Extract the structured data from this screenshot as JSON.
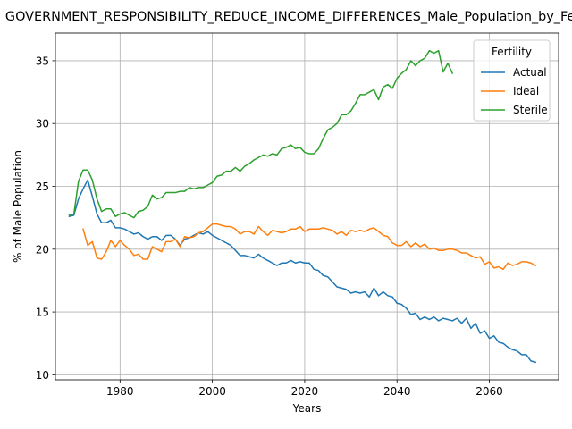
{
  "chart_data": {
    "type": "line",
    "title": "GOVERNMENT_RESPONSIBILITY_REDUCE_INCOME_DIFFERENCES_Male_Population_by_Fertility",
    "xlabel": "Years",
    "ylabel": "% of Male Population",
    "xlim": [
      1966,
      2075
    ],
    "ylim": [
      9.6,
      37.2
    ],
    "xticks": [
      1980,
      2000,
      2020,
      2040,
      2060
    ],
    "yticks": [
      10,
      15,
      20,
      25,
      30,
      35
    ],
    "grid": true,
    "legend": {
      "title": "Fertility",
      "position": "top-right"
    },
    "series": [
      {
        "name": "Actual",
        "color": "#1f77b4",
        "x": [
          1969,
          1970,
          1971,
          1972,
          1973,
          1974,
          1975,
          1976,
          1977,
          1978,
          1979,
          1980,
          1981,
          1982,
          1983,
          1984,
          1985,
          1986,
          1987,
          1988,
          1989,
          1990,
          1991,
          1992,
          1993,
          1994,
          1995,
          1996,
          1997,
          1998,
          1999,
          2000,
          2001,
          2002,
          2003,
          2004,
          2005,
          2006,
          2007,
          2008,
          2009,
          2010,
          2011,
          2012,
          2013,
          2014,
          2015,
          2016,
          2017,
          2018,
          2019,
          2020,
          2021,
          2022,
          2023,
          2024,
          2025,
          2026,
          2027,
          2028,
          2029,
          2030,
          2031,
          2032,
          2033,
          2034,
          2035,
          2036,
          2037,
          2038,
          2039,
          2040,
          2041,
          2042,
          2043,
          2044,
          2045,
          2046,
          2047,
          2048,
          2049,
          2050,
          2051,
          2052,
          2053,
          2054,
          2055,
          2056,
          2057,
          2058,
          2059,
          2060,
          2061,
          2062,
          2063,
          2064,
          2065,
          2066,
          2067,
          2068,
          2069,
          2070
        ],
        "y": [
          22.6,
          22.7,
          24.0,
          24.8,
          25.5,
          24.2,
          22.8,
          22.1,
          22.1,
          22.3,
          21.7,
          21.7,
          21.6,
          21.4,
          21.2,
          21.3,
          21.0,
          20.8,
          21.0,
          21.0,
          20.7,
          21.1,
          21.1,
          20.8,
          20.3,
          20.8,
          20.9,
          21.1,
          21.3,
          21.2,
          21.4,
          21.1,
          20.9,
          20.7,
          20.5,
          20.3,
          19.9,
          19.5,
          19.5,
          19.4,
          19.3,
          19.6,
          19.3,
          19.1,
          18.9,
          18.7,
          18.9,
          18.9,
          19.1,
          18.9,
          19.0,
          18.9,
          18.9,
          18.4,
          18.3,
          17.9,
          17.8,
          17.4,
          17.0,
          16.9,
          16.8,
          16.5,
          16.6,
          16.5,
          16.6,
          16.2,
          16.9,
          16.3,
          16.6,
          16.3,
          16.2,
          15.7,
          15.6,
          15.3,
          14.8,
          14.9,
          14.4,
          14.6,
          14.4,
          14.6,
          14.3,
          14.5,
          14.4,
          14.3,
          14.5,
          14.1,
          14.5,
          13.7,
          14.1,
          13.3,
          13.5,
          12.9,
          13.1,
          12.6,
          12.5,
          12.2,
          12.0,
          11.9,
          11.6,
          11.6,
          11.1,
          11.0
        ]
      },
      {
        "name": "Ideal",
        "color": "#ff7f0e",
        "x": [
          1972,
          1973,
          1974,
          1975,
          1976,
          1977,
          1978,
          1979,
          1980,
          1981,
          1982,
          1983,
          1984,
          1985,
          1986,
          1987,
          1988,
          1989,
          1990,
          1991,
          1992,
          1993,
          1994,
          1995,
          1996,
          1997,
          1998,
          1999,
          2000,
          2001,
          2002,
          2003,
          2004,
          2005,
          2006,
          2007,
          2008,
          2009,
          2010,
          2011,
          2012,
          2013,
          2014,
          2015,
          2016,
          2017,
          2018,
          2019,
          2020,
          2021,
          2022,
          2023,
          2024,
          2025,
          2026,
          2027,
          2028,
          2029,
          2030,
          2031,
          2032,
          2033,
          2034,
          2035,
          2036,
          2037,
          2038,
          2039,
          2040,
          2041,
          2042,
          2043,
          2044,
          2045,
          2046,
          2047,
          2048,
          2049,
          2050,
          2051,
          2052,
          2053,
          2054,
          2055,
          2056,
          2057,
          2058,
          2059,
          2060,
          2061,
          2062,
          2063,
          2064,
          2065,
          2066,
          2067,
          2068,
          2069,
          2070
        ],
        "y": [
          21.6,
          20.3,
          20.6,
          19.3,
          19.2,
          19.8,
          20.7,
          20.2,
          20.7,
          20.3,
          20.0,
          19.5,
          19.6,
          19.2,
          19.2,
          20.2,
          20.0,
          19.8,
          20.6,
          20.6,
          20.8,
          20.2,
          21.0,
          20.9,
          21.0,
          21.3,
          21.4,
          21.7,
          22.0,
          22.0,
          21.9,
          21.8,
          21.8,
          21.6,
          21.2,
          21.4,
          21.4,
          21.2,
          21.8,
          21.4,
          21.1,
          21.5,
          21.4,
          21.3,
          21.4,
          21.6,
          21.6,
          21.8,
          21.4,
          21.6,
          21.6,
          21.6,
          21.7,
          21.6,
          21.5,
          21.2,
          21.4,
          21.1,
          21.5,
          21.4,
          21.5,
          21.4,
          21.6,
          21.7,
          21.4,
          21.1,
          21.0,
          20.5,
          20.3,
          20.3,
          20.6,
          20.2,
          20.5,
          20.2,
          20.4,
          20.0,
          20.1,
          19.9,
          19.9,
          20.0,
          20.0,
          19.9,
          19.7,
          19.7,
          19.5,
          19.3,
          19.4,
          18.8,
          19.0,
          18.5,
          18.6,
          18.4,
          18.9,
          18.7,
          18.8,
          19.0,
          19.0,
          18.9,
          18.7
        ]
      },
      {
        "name": "Sterile",
        "color": "#2ca02c",
        "x": [
          1969,
          1970,
          1971,
          1972,
          1973,
          1974,
          1975,
          1976,
          1977,
          1978,
          1979,
          1980,
          1981,
          1982,
          1983,
          1984,
          1985,
          1986,
          1987,
          1988,
          1989,
          1990,
          1991,
          1992,
          1993,
          1994,
          1995,
          1996,
          1997,
          1998,
          1999,
          2000,
          2001,
          2002,
          2003,
          2004,
          2005,
          2006,
          2007,
          2008,
          2009,
          2010,
          2011,
          2012,
          2013,
          2014,
          2015,
          2016,
          2017,
          2018,
          2019,
          2020,
          2021,
          2022,
          2023,
          2024,
          2025,
          2026,
          2027,
          2028,
          2029,
          2030,
          2031,
          2032,
          2033,
          2034,
          2035,
          2036,
          2037,
          2038,
          2039,
          2040,
          2041,
          2042,
          2043,
          2044,
          2045,
          2046,
          2047,
          2048,
          2049,
          2050,
          2051,
          2052
        ],
        "y": [
          22.7,
          22.8,
          25.4,
          26.3,
          26.3,
          25.5,
          24.0,
          23.0,
          23.2,
          23.2,
          22.6,
          22.8,
          22.9,
          22.7,
          22.5,
          23.0,
          23.1,
          23.4,
          24.3,
          24.0,
          24.1,
          24.5,
          24.5,
          24.5,
          24.6,
          24.6,
          24.9,
          24.8,
          24.9,
          24.9,
          25.1,
          25.3,
          25.8,
          25.9,
          26.2,
          26.2,
          26.5,
          26.2,
          26.6,
          26.8,
          27.1,
          27.3,
          27.5,
          27.4,
          27.6,
          27.5,
          28.0,
          28.1,
          28.3,
          28.0,
          28.1,
          27.7,
          27.6,
          27.6,
          28.0,
          28.8,
          29.5,
          29.7,
          30.0,
          30.7,
          30.7,
          31.0,
          31.6,
          32.3,
          32.3,
          32.5,
          32.7,
          31.9,
          32.9,
          33.1,
          32.8,
          33.6,
          34.0,
          34.3,
          35.0,
          34.6,
          35.0,
          35.2,
          35.8,
          35.6,
          35.8,
          34.1,
          34.8,
          34.0
        ]
      }
    ]
  }
}
